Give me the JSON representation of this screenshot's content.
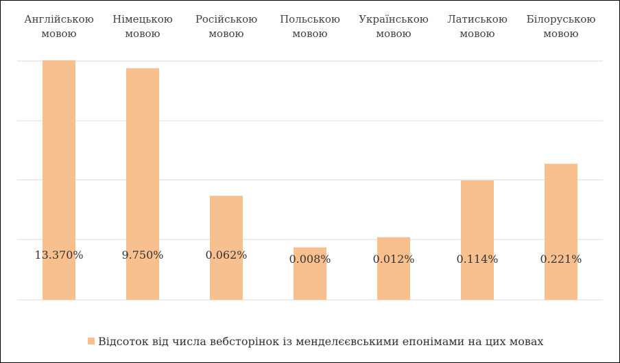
{
  "chart_data": {
    "type": "bar",
    "title": "",
    "xlabel": "",
    "ylabel": "",
    "axis_position": "top",
    "grid": true,
    "categories": [
      [
        "Англійською",
        "мовою"
      ],
      [
        "Німецькою",
        "мовою"
      ],
      [
        "Російською",
        "мовою"
      ],
      [
        "Польською",
        "мовою"
      ],
      [
        "Українською",
        "мовою"
      ],
      [
        "Латиською",
        "мовою"
      ],
      [
        "Білоруською",
        "мовою"
      ]
    ],
    "series": [
      {
        "name": "Відсоток від числа вебсторінок із менделєєвськими епонімами на цих мовах",
        "values": [
          13.37,
          9.75,
          0.062,
          0.008,
          0.012,
          0.114,
          0.221
        ],
        "data_labels": [
          "13.370%",
          "9.750%",
          "0.062%",
          "0.008%",
          "0.012%",
          "0.114%",
          "0.221%"
        ],
        "color": "#F8C08F"
      }
    ],
    "y_scale": "log",
    "y_log_range": [
      0.001,
      20
    ],
    "legend_position": "bottom",
    "gridline_color": "#d9d9d9"
  }
}
